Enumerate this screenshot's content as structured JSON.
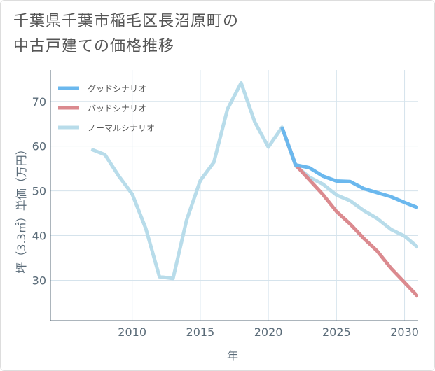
{
  "title": {
    "line1": "千葉県千葉市稲毛区長沼原町の",
    "line2": "中古戸建ての価格推移"
  },
  "chart_data": {
    "type": "line",
    "title": "千葉県千葉市稲毛区長沼原町の中古戸建ての価格推移",
    "xlabel": "年",
    "ylabel": "坪（3.3㎡）単価（万円）",
    "xlim": [
      2004,
      2031
    ],
    "ylim": [
      21,
      77
    ],
    "xticks": [
      2010,
      2015,
      2020,
      2025,
      2030
    ],
    "yticks": [
      30,
      40,
      50,
      60,
      70
    ],
    "legend_position": "top-left",
    "series": [
      {
        "name": "グッドシナリオ",
        "color": "#6bb8ee",
        "x": [
          2021,
          2022,
          2023,
          2024,
          2025,
          2026,
          2027,
          2028,
          2029,
          2030,
          2031
        ],
        "values": [
          64.2,
          55.8,
          55.2,
          53.3,
          52.2,
          52.1,
          50.5,
          49.6,
          48.7,
          47.4,
          46.2
        ]
      },
      {
        "name": "バッドシナリオ",
        "color": "#db8a8f",
        "x": [
          2021,
          2022,
          2023,
          2024,
          2025,
          2026,
          2027,
          2028,
          2029,
          2030,
          2031
        ],
        "values": [
          64.2,
          55.8,
          52.5,
          49.2,
          45.4,
          42.6,
          39.4,
          36.5,
          32.7,
          29.5,
          26.3
        ]
      },
      {
        "name": "ノーマルシナリオ",
        "color": "#b8dcea",
        "x": [
          2007,
          2008,
          2009,
          2010,
          2011,
          2012,
          2013,
          2014,
          2015,
          2016,
          2017,
          2018,
          2019,
          2020,
          2021,
          2022,
          2023,
          2024,
          2025,
          2026,
          2027,
          2028,
          2029,
          2030,
          2031
        ],
        "values": [
          59.3,
          58.1,
          53.4,
          49.3,
          41.6,
          30.8,
          30.4,
          43.5,
          52.3,
          56.4,
          68.3,
          74.1,
          65.4,
          59.8,
          64.2,
          55.6,
          53.1,
          51.5,
          49.1,
          47.8,
          45.6,
          43.8,
          41.4,
          39.9,
          37.3
        ]
      }
    ]
  }
}
